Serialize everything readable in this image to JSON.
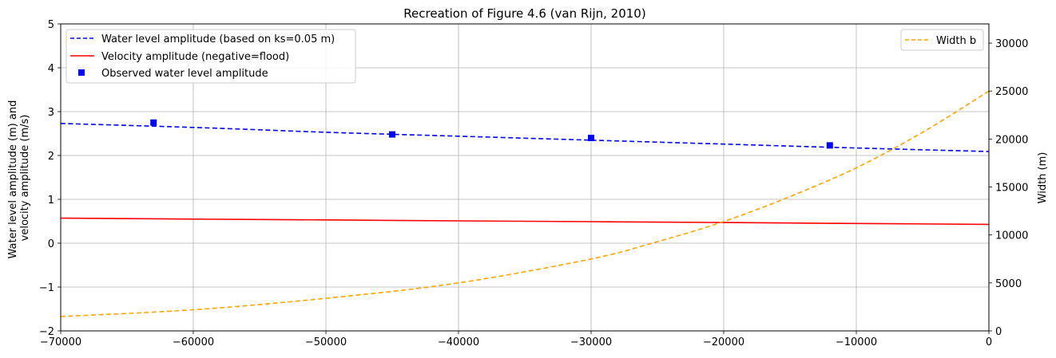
{
  "chart_data": {
    "type": "line",
    "title": "Recreation of Figure 4.6 (van Rijn, 2010)",
    "xlim": [
      -70000,
      0
    ],
    "x_ticks": [
      -70000,
      -60000,
      -50000,
      -40000,
      -30000,
      -20000,
      -10000,
      0
    ],
    "x_tick_labels": [
      "−70000",
      "−60000",
      "−50000",
      "−40000",
      "−30000",
      "−20000",
      "−10000",
      "0"
    ],
    "ylim_left": [
      -2,
      5
    ],
    "y_ticks_left": [
      -2,
      -1,
      0,
      1,
      2,
      3,
      4,
      5
    ],
    "y_tick_labels_left": [
      "−2",
      "−1",
      "0",
      "1",
      "2",
      "3",
      "4",
      "5"
    ],
    "ylabel_left_lines": [
      "Water level amplitude (m) and",
      "velocity amplitude (m/s)"
    ],
    "ylim_right": [
      0,
      32000
    ],
    "y_ticks_right": [
      0,
      5000,
      10000,
      15000,
      20000,
      25000,
      30000
    ],
    "y_tick_labels_right": [
      "0",
      "5000",
      "10000",
      "15000",
      "20000",
      "25000",
      "30000"
    ],
    "ylabel_right": "Width (m)",
    "grid": true,
    "legend_left": {
      "placement": "top-left",
      "entries": [
        "Water level amplitude (based on ks=0.05 m)",
        "Velocity amplitude (negative=flood)",
        "Observed water level amplitude"
      ]
    },
    "legend_right": {
      "placement": "top-right",
      "entries": [
        "Width b"
      ]
    },
    "series": [
      {
        "name": "Water level amplitude (based on ks=0.05 m)",
        "axis": "left",
        "style": "dashed",
        "color": "#0000ff",
        "x": [
          -70000,
          -60000,
          -50000,
          -40000,
          -30000,
          -20000,
          -10000,
          0
        ],
        "values": [
          2.73,
          2.64,
          2.53,
          2.44,
          2.35,
          2.26,
          2.17,
          2.09
        ]
      },
      {
        "name": "Velocity amplitude (negative=flood)",
        "axis": "left",
        "style": "solid",
        "color": "#ff0000",
        "x": [
          -70000,
          -60000,
          -50000,
          -40000,
          -30000,
          -20000,
          -10000,
          0
        ],
        "values": [
          0.57,
          0.55,
          0.53,
          0.51,
          0.49,
          0.47,
          0.45,
          0.43
        ]
      },
      {
        "name": "Observed water level amplitude",
        "axis": "left",
        "style": "markers",
        "color": "#0000ff",
        "x": [
          -63000,
          -45000,
          -30000,
          -12000
        ],
        "values": [
          2.75,
          2.48,
          2.4,
          2.23
        ]
      },
      {
        "name": "Width b",
        "axis": "right",
        "style": "dashed",
        "color": "#ffa500",
        "x": [
          -70000,
          -60000,
          -50000,
          -40000,
          -30000,
          -25000,
          -20000,
          -15000,
          -10000,
          -5000,
          0
        ],
        "values": [
          1500,
          2200,
          3400,
          5000,
          7500,
          9300,
          11400,
          14000,
          17000,
          20700,
          25000
        ]
      }
    ]
  }
}
